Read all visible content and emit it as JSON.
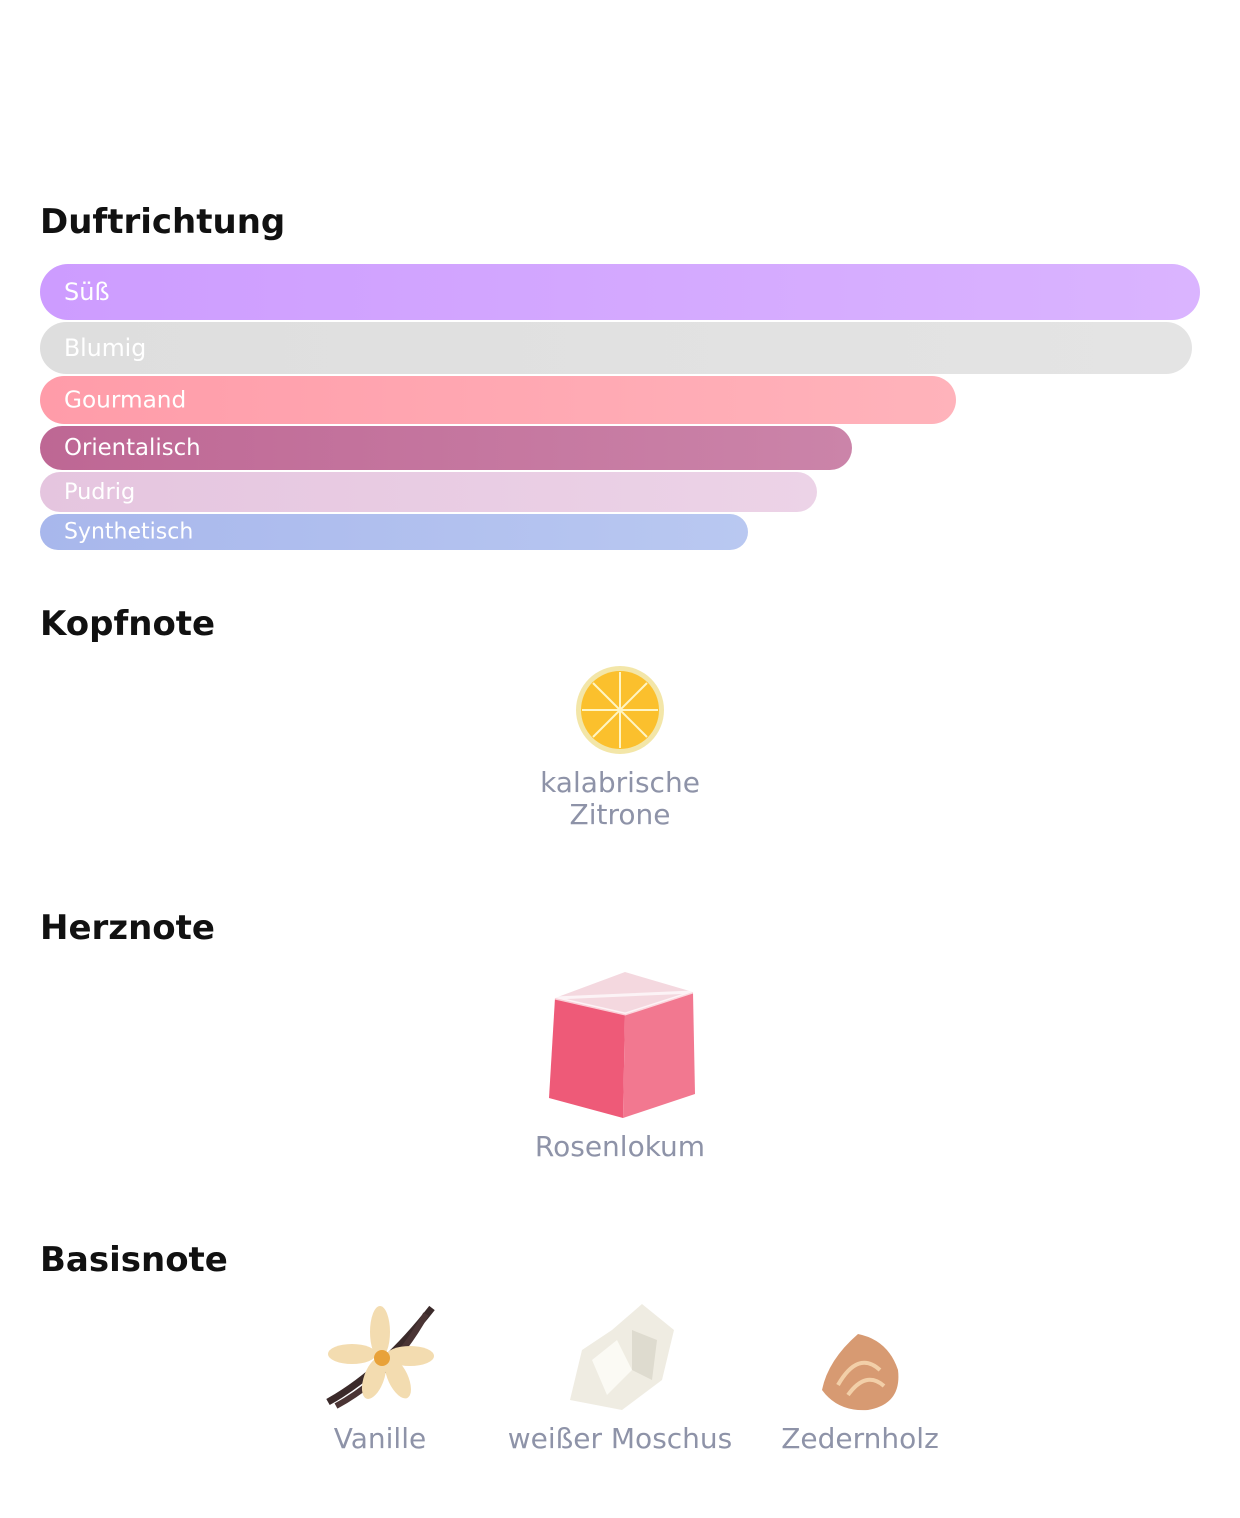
{
  "accords": {
    "title": "Duftrichtung",
    "items": [
      {
        "name": "Süß",
        "value": 100,
        "colors": [
          "#cd9cff",
          "#dab4ff"
        ]
      },
      {
        "name": "Blumig",
        "value": 99.3,
        "colors": [
          "#dedede",
          "#e4e4e4"
        ]
      },
      {
        "name": "Gourmand",
        "value": 79,
        "colors": [
          "#ff9ca9",
          "#ffb3bb"
        ]
      },
      {
        "name": "Orientalisch",
        "value": 70,
        "colors": [
          "#be6794",
          "#cb84a9"
        ]
      },
      {
        "name": "Pudrig",
        "value": 67,
        "colors": [
          "#e5c5df",
          "#ecd3e7"
        ]
      },
      {
        "name": "Synthetisch",
        "value": 61,
        "colors": [
          "#a8b7ec",
          "#b9c8f1"
        ]
      }
    ]
  },
  "top_notes": {
    "title": "Kopfnote",
    "items": [
      "kalabrische Zitrone"
    ]
  },
  "heart_notes": {
    "title": "Herznote",
    "items": [
      "Rosenlokum"
    ]
  },
  "base_notes": {
    "title": "Basisnote",
    "items": [
      "Vanille",
      "weißer Moschus",
      "Zedernholz"
    ]
  }
}
